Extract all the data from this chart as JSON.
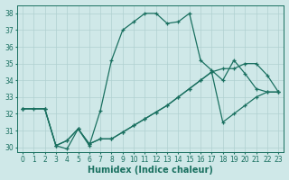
{
  "xlabel": "Humidex (Indice chaleur)",
  "xlim": [
    -0.5,
    23.5
  ],
  "ylim": [
    29.7,
    38.5
  ],
  "xticks": [
    0,
    1,
    2,
    3,
    4,
    5,
    6,
    7,
    8,
    9,
    10,
    11,
    12,
    13,
    14,
    15,
    16,
    17,
    18,
    19,
    20,
    21,
    22,
    23
  ],
  "yticks": [
    30,
    31,
    32,
    33,
    34,
    35,
    36,
    37,
    38
  ],
  "bg_color": "#cfe8e8",
  "grid_color": "#b0d0d0",
  "line_color": "#1a7060",
  "line1_x": [
    0,
    1,
    2,
    3,
    4,
    5,
    6,
    7,
    8,
    9,
    10,
    11,
    12,
    13,
    14,
    15,
    16,
    17,
    18,
    19,
    20,
    21,
    22,
    23
  ],
  "line1_y": [
    32.3,
    32.3,
    32.3,
    30.1,
    29.9,
    31.1,
    30.1,
    32.2,
    35.2,
    37.0,
    37.5,
    38.0,
    38.0,
    37.4,
    37.5,
    38.0,
    35.2,
    34.6,
    34.0,
    35.2,
    34.4,
    33.5,
    33.3,
    33.3
  ],
  "line2_x": [
    0,
    2,
    3,
    4,
    5,
    6,
    7,
    8,
    9,
    10,
    11,
    12,
    13,
    14,
    15,
    16,
    17,
    18,
    19,
    20,
    21,
    22,
    23
  ],
  "line2_y": [
    32.3,
    32.3,
    30.1,
    30.4,
    31.1,
    30.2,
    30.5,
    30.5,
    30.9,
    31.3,
    31.7,
    32.1,
    32.5,
    33.0,
    33.5,
    34.0,
    34.5,
    34.7,
    34.7,
    35.0,
    35.0,
    34.3,
    33.3
  ],
  "line3_x": [
    0,
    2,
    3,
    4,
    5,
    6,
    7,
    8,
    9,
    10,
    11,
    12,
    13,
    14,
    15,
    16,
    17,
    18,
    19,
    20,
    21,
    22,
    23
  ],
  "line3_y": [
    32.3,
    32.3,
    30.1,
    30.4,
    31.1,
    30.2,
    30.5,
    30.5,
    30.9,
    31.3,
    31.7,
    32.1,
    32.5,
    33.0,
    33.5,
    34.0,
    34.5,
    31.5,
    32.0,
    32.5,
    33.0,
    33.3,
    33.3
  ],
  "marker": "+",
  "markersize": 3.5,
  "linewidth": 0.9,
  "tick_fontsize": 5.5,
  "label_fontsize": 7.0
}
